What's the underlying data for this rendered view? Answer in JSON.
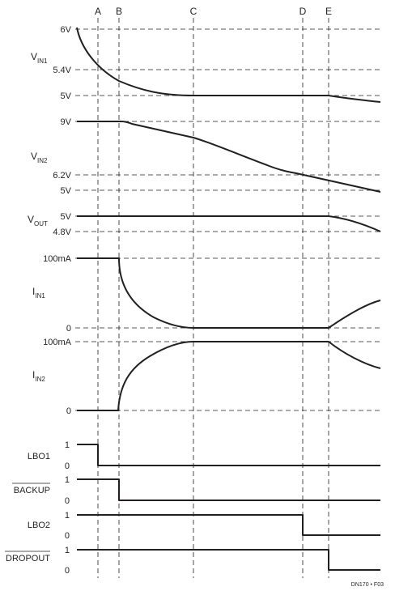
{
  "markers": [
    "A",
    "B",
    "C",
    "D",
    "E"
  ],
  "signals": {
    "vin1": {
      "name": "V",
      "sub": "IN1",
      "levels": [
        "6V",
        "5.4V",
        "5V"
      ]
    },
    "vin2": {
      "name": "V",
      "sub": "IN2",
      "levels": [
        "9V",
        "6.2V",
        "5V"
      ]
    },
    "vout": {
      "name": "V",
      "sub": "OUT",
      "levels": [
        "5V",
        "4.8V"
      ]
    },
    "iin1": {
      "name": "I",
      "sub": "IN1",
      "levels": [
        "100mA",
        "0"
      ]
    },
    "iin2": {
      "name": "I",
      "sub": "IN2",
      "levels": [
        "100mA",
        "0"
      ]
    },
    "lbo1": {
      "name": "LBO1",
      "levels": [
        "1",
        "0"
      ]
    },
    "backup": {
      "name": "BACKUP",
      "levels": [
        "1",
        "0"
      ]
    },
    "lbo2": {
      "name": "LBO2",
      "levels": [
        "1",
        "0"
      ]
    },
    "dropout": {
      "name": "DROPOUT",
      "levels": [
        "1",
        "0"
      ]
    }
  },
  "figure_id": "DN170 • F03"
}
